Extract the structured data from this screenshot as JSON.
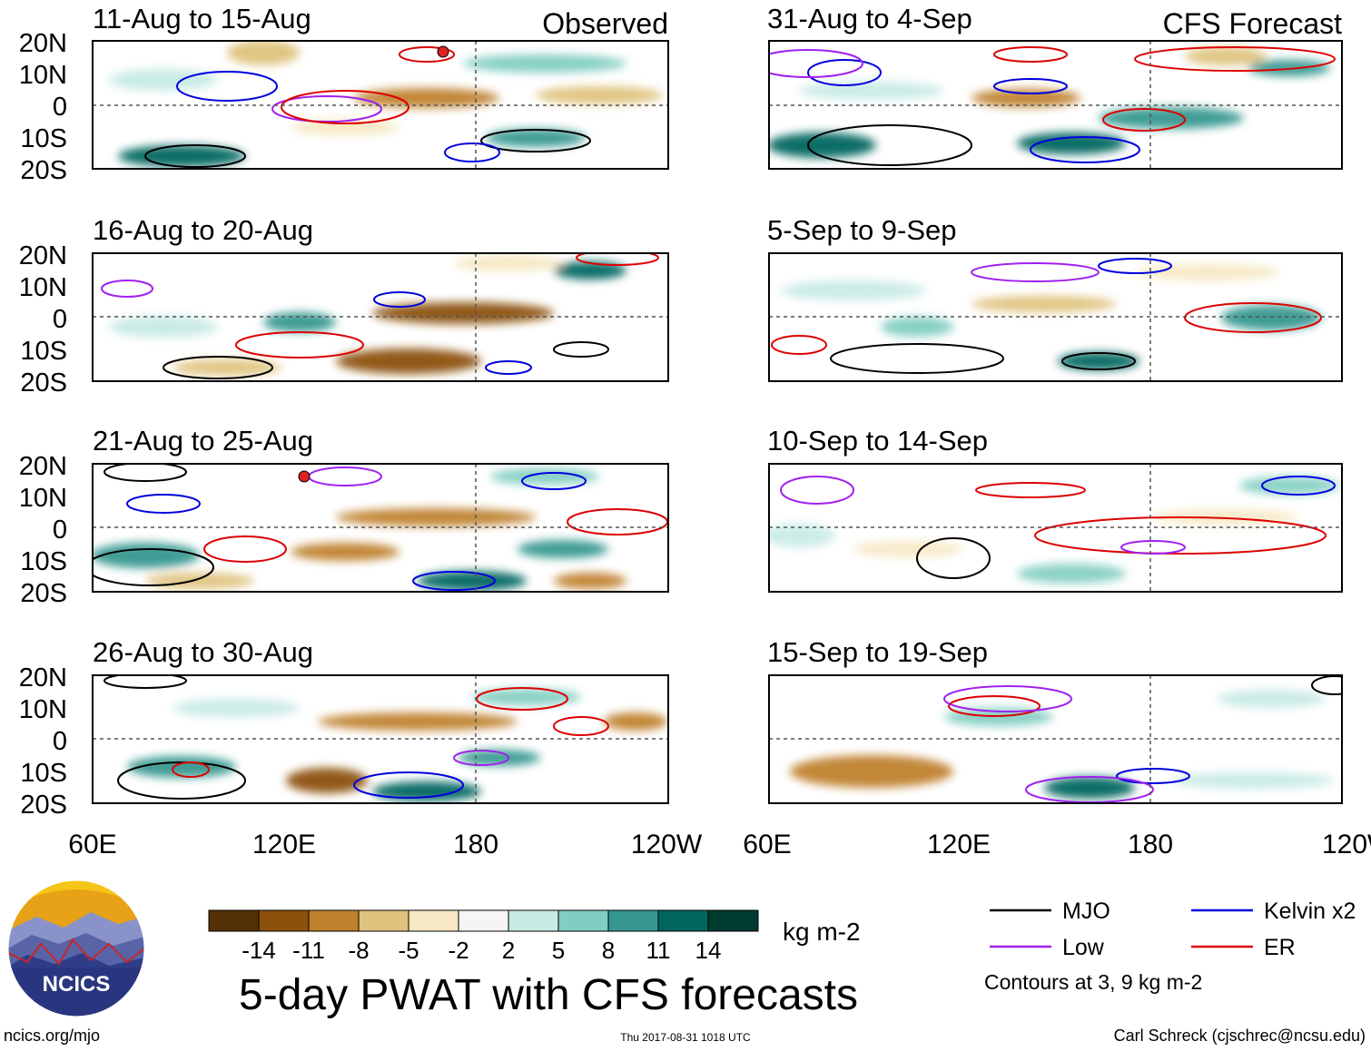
{
  "header": {
    "left_label": "Observed",
    "right_label": "CFS Forecast"
  },
  "panels_left": [
    {
      "title": "11-Aug to 15-Aug"
    },
    {
      "title": "16-Aug to 20-Aug"
    },
    {
      "title": "21-Aug to 25-Aug"
    },
    {
      "title": "26-Aug to 30-Aug"
    }
  ],
  "panels_right": [
    {
      "title": "31-Aug to 4-Sep"
    },
    {
      "title": "5-Sep to 9-Sep"
    },
    {
      "title": "10-Sep to 14-Sep"
    },
    {
      "title": "15-Sep to 19-Sep"
    }
  ],
  "lat_labels": [
    "20N",
    "10N",
    "0",
    "10S",
    "20S"
  ],
  "lon_labels": [
    "60E",
    "120E",
    "180",
    "120W"
  ],
  "colorbar": {
    "tick_labels": [
      "-14",
      "-11",
      "-8",
      "-5",
      "-2",
      "2",
      "5",
      "8",
      "11",
      "14"
    ],
    "unit": "kg m-2",
    "colors": [
      "#543005",
      "#8c510a",
      "#bf812d",
      "#dfc27d",
      "#f6e8c3",
      "#f5f5f5",
      "#c7eae5",
      "#80cdc1",
      "#35978f",
      "#01665e",
      "#003c30"
    ]
  },
  "legend": {
    "items": [
      {
        "label": "MJO",
        "color": "#000000"
      },
      {
        "label": "Kelvin x2",
        "color": "#0000dd"
      },
      {
        "label": "Low",
        "color": "#a020f0"
      },
      {
        "label": "ER",
        "color": "#dd0000"
      }
    ],
    "note": "Contours at 3, 9 kg m-2"
  },
  "main_title": "5-day PWAT with CFS forecasts",
  "logo_text": "NCICS",
  "footer": {
    "url": "ncics.org/mjo",
    "timestamp": "Thu 2017-08-31 1018 UTC",
    "credit": "Carl Schreck (cjschrec@ncsu.edu)"
  },
  "storm_marker": "9"
}
